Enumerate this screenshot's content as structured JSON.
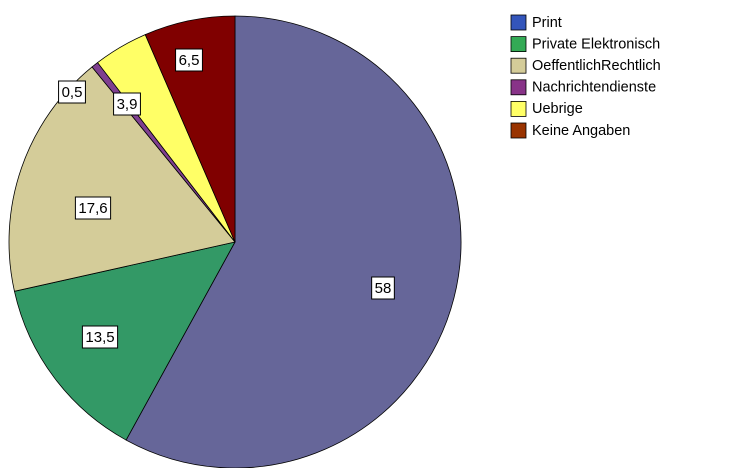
{
  "chart_data": {
    "type": "pie",
    "categories": [
      "Print",
      "Private Elektronisch",
      "OeffentlichRechtlich",
      "Nachrichtendienste",
      "Uebrige",
      "Keine Angaben"
    ],
    "values": [
      58,
      13.5,
      17.6,
      0.5,
      3.9,
      6.5
    ],
    "value_labels": [
      "58",
      "13,5",
      "17,6",
      "0,5",
      "3,9",
      "6,5"
    ],
    "colors": [
      "#666699",
      "#339966",
      "#d4cc99",
      "#7f3f8f",
      "#ffff66",
      "#800000"
    ],
    "legend_colors": [
      "#3355bb",
      "#33aa55",
      "#d4cc99",
      "#883388",
      "#ffff66",
      "#993300"
    ],
    "legend": "right"
  }
}
